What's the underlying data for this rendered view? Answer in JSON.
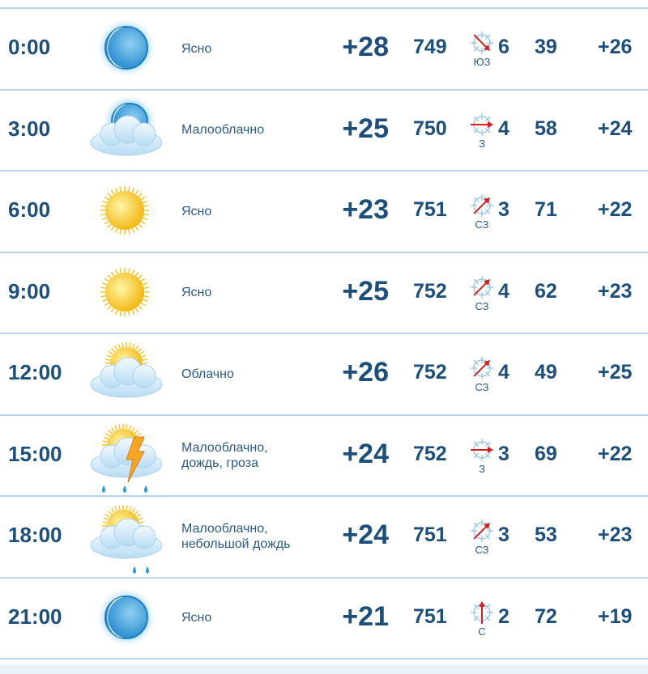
{
  "rows": [
    {
      "time": "0:00",
      "icon": "moon-icon",
      "desc": "Ясно",
      "temp": "+28",
      "pressure": "749",
      "wind_dir": "ЮЗ",
      "wind_speed": "6",
      "humidity": "39",
      "feels": "+26"
    },
    {
      "time": "3:00",
      "icon": "moon-cloud-icon",
      "desc": "Малооблачно",
      "temp": "+25",
      "pressure": "750",
      "wind_dir": "З",
      "wind_speed": "4",
      "humidity": "58",
      "feels": "+24"
    },
    {
      "time": "6:00",
      "icon": "sun-icon",
      "desc": "Ясно",
      "temp": "+23",
      "pressure": "751",
      "wind_dir": "СЗ",
      "wind_speed": "3",
      "humidity": "71",
      "feels": "+22"
    },
    {
      "time": "9:00",
      "icon": "sun-icon",
      "desc": "Ясно",
      "temp": "+25",
      "pressure": "752",
      "wind_dir": "СЗ",
      "wind_speed": "4",
      "humidity": "62",
      "feels": "+23"
    },
    {
      "time": "12:00",
      "icon": "sun-cloud-icon",
      "desc": "Облачно",
      "temp": "+26",
      "pressure": "752",
      "wind_dir": "СЗ",
      "wind_speed": "4",
      "humidity": "49",
      "feels": "+25"
    },
    {
      "time": "15:00",
      "icon": "thunderstorm-rain-icon",
      "desc": "Малооблачно, дождь, гроза",
      "desc_lines": [
        "Малооблачно,",
        "дождь, гроза"
      ],
      "temp": "+24",
      "pressure": "752",
      "wind_dir": "З",
      "wind_speed": "3",
      "humidity": "69",
      "feels": "+22"
    },
    {
      "time": "18:00",
      "icon": "sun-cloud-rain-icon",
      "desc": "Малооблачно, небольшой дождь",
      "desc_lines": [
        "Малооблачно,",
        "небольшой дождь"
      ],
      "temp": "+24",
      "pressure": "751",
      "wind_dir": "СЗ",
      "wind_speed": "3",
      "humidity": "53",
      "feels": "+23"
    },
    {
      "time": "21:00",
      "icon": "moon-icon",
      "desc": "Ясно",
      "temp": "+21",
      "pressure": "751",
      "wind_dir": "С",
      "wind_speed": "2",
      "humidity": "72",
      "feels": "+19"
    }
  ],
  "colors": {
    "text": "#1d4f7c",
    "separator": "#b9d3e8",
    "wind_arrow": "#d81e1e"
  }
}
